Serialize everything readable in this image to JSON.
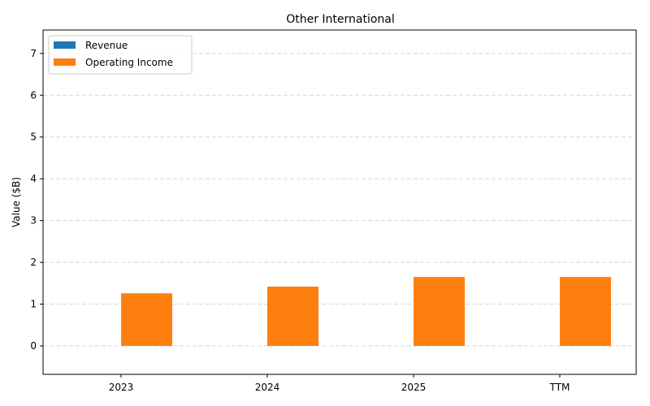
{
  "chart_data": {
    "type": "bar",
    "title": "Other International",
    "xlabel": "",
    "ylabel": "Value ($B)",
    "categories": [
      "2023",
      "2024",
      "2025",
      "TTM"
    ],
    "series": [
      {
        "name": "Revenue",
        "color": "#1f77b4",
        "values": [
          0,
          0,
          0,
          0
        ]
      },
      {
        "name": "Operating Income",
        "color": "#ff7f0e",
        "values": [
          1.26,
          1.42,
          1.65,
          1.65
        ]
      }
    ],
    "ylim": [
      -0.68,
      7.56
    ],
    "yticks": [
      0,
      1,
      2,
      3,
      4,
      5,
      6,
      7
    ],
    "grid": true,
    "legend_position": "upper left"
  }
}
